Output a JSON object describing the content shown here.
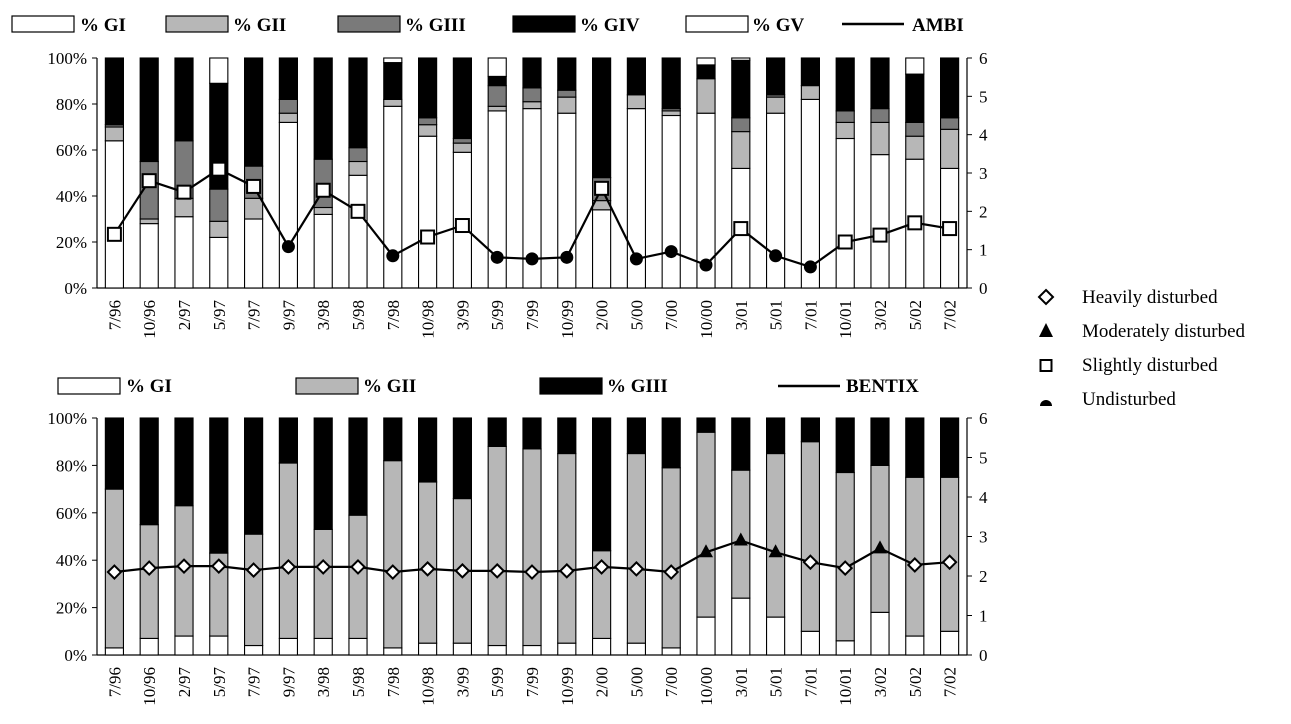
{
  "chart_data": [
    {
      "type": "bar",
      "stacked": true,
      "secondary_line": "AMBI",
      "categories": [
        "7/96",
        "10/96",
        "2/97",
        "5/97",
        "7/97",
        "9/97",
        "3/98",
        "5/98",
        "7/98",
        "10/98",
        "3/99",
        "5/99",
        "7/99",
        "10/99",
        "2/00",
        "5/00",
        "7/00",
        "10/00",
        "3/01",
        "5/01",
        "7/01",
        "10/01",
        "3/02",
        "5/02",
        "7/02"
      ],
      "legend": [
        "% GI",
        "% GII",
        "% GIII",
        "% GIV",
        "% GV",
        "AMBI"
      ],
      "y_left": {
        "min": 0,
        "max": 100,
        "ticks": [
          "0%",
          "20%",
          "40%",
          "60%",
          "80%",
          "100%"
        ]
      },
      "y_right": {
        "min": 0,
        "max": 6,
        "ticks": [
          "0",
          "1",
          "2",
          "3",
          "4",
          "5",
          "6"
        ]
      },
      "series": [
        {
          "name": "% GI",
          "values": [
            64,
            28,
            31,
            22,
            30,
            72,
            32,
            49,
            79,
            66,
            59,
            77,
            78,
            76,
            34,
            78,
            75,
            76,
            52,
            76,
            82,
            65,
            58,
            56,
            52
          ]
        },
        {
          "name": "% GII",
          "values": [
            6,
            2,
            8,
            7,
            9,
            4,
            3,
            6,
            3,
            5,
            4,
            2,
            3,
            7,
            4,
            6,
            2,
            15,
            16,
            7,
            6,
            7,
            14,
            10,
            17
          ]
        },
        {
          "name": "% GIII",
          "values": [
            1,
            25,
            25,
            14,
            14,
            6,
            21,
            6,
            0,
            3,
            2,
            9,
            6,
            3,
            10,
            0,
            1,
            0,
            6,
            1,
            0,
            5,
            6,
            6,
            5
          ]
        },
        {
          "name": "% GIV",
          "values": [
            29,
            45,
            36,
            46,
            47,
            18,
            44,
            39,
            16,
            26,
            35,
            4,
            13,
            14,
            52,
            16,
            22,
            6,
            25,
            16,
            12,
            23,
            22,
            21,
            26
          ]
        },
        {
          "name": "% GV",
          "values": [
            0,
            0,
            0,
            11,
            0,
            0,
            0,
            0,
            2,
            0,
            0,
            8,
            0,
            0,
            0,
            0,
            0,
            3,
            1,
            0,
            0,
            0,
            0,
            7,
            0
          ]
        }
      ],
      "line": {
        "name": "AMBI",
        "values": [
          1.4,
          2.8,
          2.5,
          3.1,
          2.65,
          1.08,
          2.55,
          2.0,
          0.84,
          1.33,
          1.63,
          0.8,
          0.76,
          0.8,
          2.6,
          0.76,
          0.95,
          0.6,
          1.55,
          0.84,
          0.55,
          1.2,
          1.38,
          1.7,
          1.55
        ]
      }
    },
    {
      "type": "bar",
      "stacked": true,
      "secondary_line": "BENTIX",
      "categories": [
        "7/96",
        "10/96",
        "2/97",
        "5/97",
        "7/97",
        "9/97",
        "3/98",
        "5/98",
        "7/98",
        "10/98",
        "3/99",
        "5/99",
        "7/99",
        "10/99",
        "2/00",
        "5/00",
        "7/00",
        "10/00",
        "3/01",
        "5/01",
        "7/01",
        "10/01",
        "3/02",
        "5/02",
        "7/02"
      ],
      "legend": [
        "% GI",
        "% GII",
        "% GIII",
        "BENTIX"
      ],
      "y_left": {
        "min": 0,
        "max": 100,
        "ticks": [
          "0%",
          "20%",
          "40%",
          "60%",
          "80%",
          "100%"
        ]
      },
      "y_right": {
        "min": 0,
        "max": 6,
        "ticks": [
          "0",
          "1",
          "2",
          "3",
          "4",
          "5",
          "6"
        ]
      },
      "series": [
        {
          "name": "% GI",
          "values": [
            3,
            7,
            8,
            8,
            4,
            7,
            7,
            7,
            3,
            5,
            5,
            4,
            4,
            5,
            7,
            5,
            3,
            16,
            24,
            16,
            10,
            6,
            18,
            8,
            10
          ]
        },
        {
          "name": "% GII",
          "values": [
            67,
            48,
            55,
            35,
            47,
            74,
            46,
            52,
            79,
            68,
            61,
            84,
            83,
            80,
            37,
            80,
            76,
            78,
            54,
            69,
            80,
            71,
            62,
            67,
            65
          ]
        },
        {
          "name": "% GIII",
          "values": [
            30,
            45,
            37,
            57,
            49,
            19,
            47,
            41,
            18,
            27,
            34,
            12,
            13,
            15,
            56,
            15,
            21,
            6,
            22,
            15,
            10,
            23,
            20,
            25,
            25
          ]
        }
      ],
      "line": {
        "name": "BENTIX",
        "values": [
          2.1,
          2.2,
          2.25,
          2.25,
          2.15,
          2.23,
          2.23,
          2.23,
          2.1,
          2.18,
          2.13,
          2.13,
          2.1,
          2.13,
          2.23,
          2.18,
          2.1,
          2.6,
          2.9,
          2.6,
          2.35,
          2.2,
          2.7,
          2.28,
          2.35
        ],
        "status": [
          "heavily",
          "heavily",
          "heavily",
          "heavily",
          "heavily",
          "heavily",
          "heavily",
          "heavily",
          "heavily",
          "heavily",
          "heavily",
          "heavily",
          "heavily",
          "heavily",
          "heavily",
          "heavily",
          "heavily",
          "moderately",
          "moderately",
          "moderately",
          "heavily",
          "heavily",
          "moderately",
          "heavily",
          "heavily"
        ]
      },
      "status_legend": [
        {
          "key": "heavily",
          "label": "Heavily disturbed",
          "marker": "diamond"
        },
        {
          "key": "moderately",
          "label": "Moderately disturbed",
          "marker": "triangle"
        },
        {
          "key": "slightly",
          "label": "Slightly disturbed",
          "marker": "square"
        },
        {
          "key": "undisturbed",
          "label": "Undisturbed",
          "marker": "half-circle"
        }
      ]
    }
  ],
  "colors": {
    "GI": "#ffffff",
    "GII": "#b7b7b7",
    "GIII_top": "#7a7a7a",
    "GIII_bottom": "#000000",
    "GIV": "#000000",
    "GV": "#ffffff",
    "line": "#000000"
  }
}
